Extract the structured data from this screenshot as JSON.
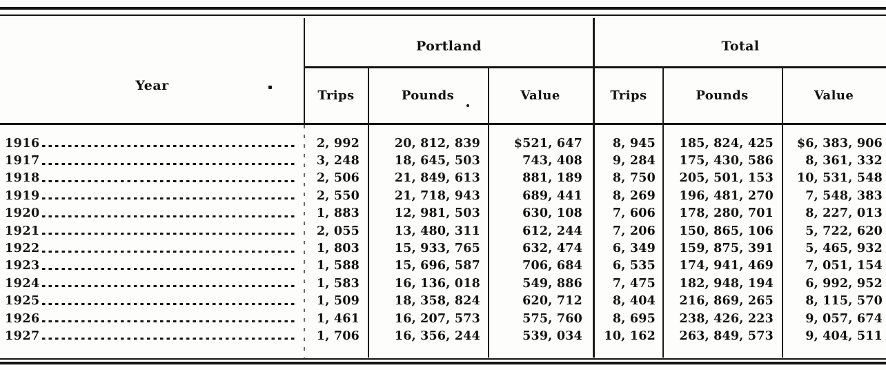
{
  "table": {
    "year_header": "Year",
    "groups": [
      {
        "label": "Portland",
        "sub_columns": [
          "Trips",
          "Pounds",
          "Value"
        ]
      },
      {
        "label": "Total",
        "sub_columns": [
          "Trips",
          "Pounds",
          "Value"
        ]
      }
    ],
    "rows": [
      {
        "year": "1916",
        "portland": {
          "trips": "2, 992",
          "pounds": "20, 812, 839",
          "value": "$521, 647"
        },
        "total": {
          "trips": "8, 945",
          "pounds": "185, 824, 425",
          "value": "$6, 383, 906"
        }
      },
      {
        "year": "1917",
        "portland": {
          "trips": "3, 248",
          "pounds": "18, 645, 503",
          "value": "743, 408"
        },
        "total": {
          "trips": "9, 284",
          "pounds": "175, 430, 586",
          "value": "8, 361, 332"
        }
      },
      {
        "year": "1918",
        "portland": {
          "trips": "2, 506",
          "pounds": "21, 849, 613",
          "value": "881, 189"
        },
        "total": {
          "trips": "8, 750",
          "pounds": "205, 501, 153",
          "value": "10, 531, 548"
        }
      },
      {
        "year": "1919",
        "portland": {
          "trips": "2, 550",
          "pounds": "21, 718, 943",
          "value": "689, 441"
        },
        "total": {
          "trips": "8, 269",
          "pounds": "196, 481, 270",
          "value": "7, 548, 383"
        }
      },
      {
        "year": "1920",
        "portland": {
          "trips": "1, 883",
          "pounds": "12, 981, 503",
          "value": "630, 108"
        },
        "total": {
          "trips": "7, 606",
          "pounds": "178, 280, 701",
          "value": "8, 227, 013"
        }
      },
      {
        "year": "1921",
        "portland": {
          "trips": "2, 055",
          "pounds": "13, 480, 311",
          "value": "612, 244"
        },
        "total": {
          "trips": "7, 206",
          "pounds": "150, 865, 106",
          "value": "5, 722, 620"
        }
      },
      {
        "year": "1922",
        "portland": {
          "trips": "1, 803",
          "pounds": "15, 933, 765",
          "value": "632, 474"
        },
        "total": {
          "trips": "6, 349",
          "pounds": "159, 875, 391",
          "value": "5, 465, 932"
        }
      },
      {
        "year": "1923",
        "portland": {
          "trips": "1, 588",
          "pounds": "15, 696, 587",
          "value": "706, 684"
        },
        "total": {
          "trips": "6, 535",
          "pounds": "174, 941, 469",
          "value": "7, 051, 154"
        }
      },
      {
        "year": "1924",
        "portland": {
          "trips": "1, 583",
          "pounds": "16, 136, 018",
          "value": "549, 886"
        },
        "total": {
          "trips": "7, 475",
          "pounds": "182, 948, 194",
          "value": "6, 992, 952"
        }
      },
      {
        "year": "1925",
        "portland": {
          "trips": "1, 509",
          "pounds": "18, 358, 824",
          "value": "620, 712"
        },
        "total": {
          "trips": "8, 404",
          "pounds": "216, 869, 265",
          "value": "8, 115, 570"
        }
      },
      {
        "year": "1926",
        "portland": {
          "trips": "1, 461",
          "pounds": "16, 207, 573",
          "value": "575, 760"
        },
        "total": {
          "trips": "8, 695",
          "pounds": "238, 426, 223",
          "value": "9, 057, 674"
        }
      },
      {
        "year": "1927",
        "portland": {
          "trips": "1, 706",
          "pounds": "16, 356, 244",
          "value": "539, 034"
        },
        "total": {
          "trips": "10, 162",
          "pounds": "263, 849, 573",
          "value": "9, 404, 511"
        }
      }
    ]
  }
}
